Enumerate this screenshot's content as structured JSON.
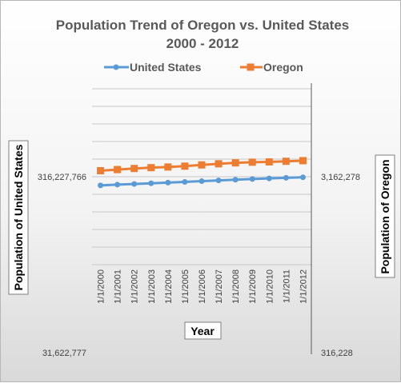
{
  "chart_data": {
    "type": "line",
    "title": "Population Trend of  Oregon vs. United States",
    "subtitle": "2000 - 2012",
    "xlabel": "Year",
    "ylabel_left": "Population of United States",
    "ylabel_right": "Population of Oregon",
    "categories": [
      "1/1/2000",
      "1/1/2001",
      "1/1/2002",
      "1/1/2003",
      "1/1/2004",
      "1/1/2005",
      "1/1/2006",
      "1/1/2007",
      "1/1/2008",
      "1/1/2009",
      "1/1/2010",
      "1/1/2011",
      "1/1/2012"
    ],
    "left_axis": {
      "scale": "log",
      "range": [
        31622777,
        3162277660
      ],
      "tick_labels": [
        "31,622,777",
        "316,227,766"
      ]
    },
    "right_axis": {
      "scale": "log",
      "range": [
        316228,
        31622777
      ],
      "tick_labels": [
        "316,228",
        "3,162,278"
      ]
    },
    "series": [
      {
        "name": "United States",
        "axis": "left",
        "color": "#5b9bd5",
        "marker": "circle",
        "values": [
          282200000,
          285000000,
          287600000,
          290100000,
          292800000,
          295500000,
          298400000,
          301200000,
          304100000,
          306800000,
          309300000,
          311600000,
          313900000
        ]
      },
      {
        "name": "Oregon",
        "axis": "right",
        "color": "#ed7d31",
        "marker": "square",
        "values": [
          3421000,
          3472000,
          3522000,
          3560000,
          3591000,
          3631000,
          3690000,
          3745000,
          3791000,
          3823000,
          3838000,
          3869000,
          3900000
        ]
      }
    ],
    "grid": true,
    "legend_position": "top"
  }
}
